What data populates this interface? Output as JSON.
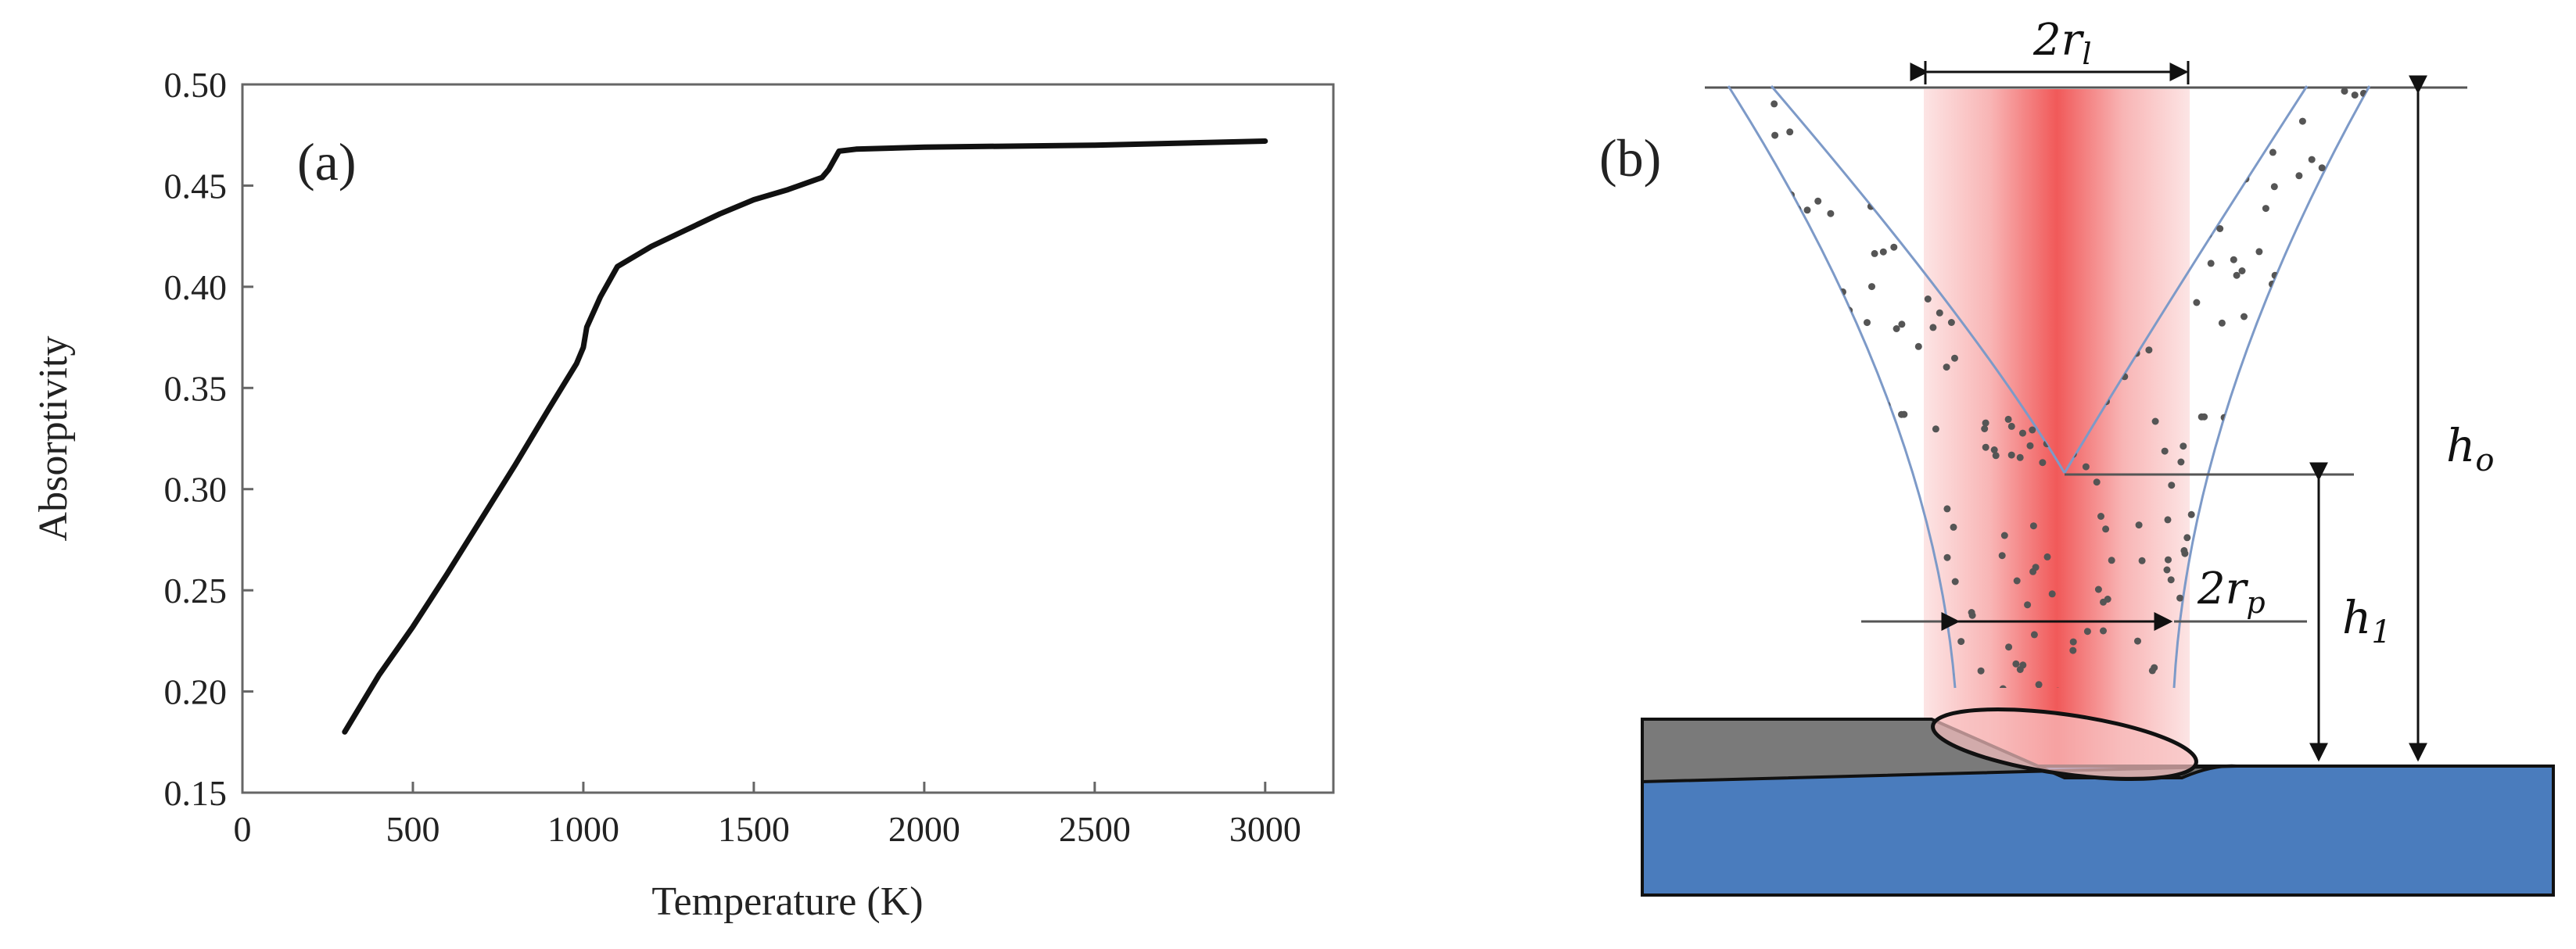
{
  "chart_data": {
    "type": "line",
    "panel_label": "(a)",
    "xlabel": "Temperature (K)",
    "ylabel": "Absorptivity",
    "xlim": [
      0,
      3200
    ],
    "ylim": [
      0.15,
      0.5
    ],
    "x_ticks": [
      "0",
      "500",
      "1000",
      "1500",
      "2000",
      "2500",
      "3000"
    ],
    "y_ticks": [
      "0.15",
      "0.20",
      "0.25",
      "0.30",
      "0.35",
      "0.40",
      "0.45",
      "0.50"
    ],
    "grid": false,
    "series": [
      {
        "x": [
          300,
          400,
          500,
          550,
          600,
          700,
          800,
          900,
          980,
          1000,
          1010,
          1050,
          1100,
          1200,
          1300,
          1400,
          1500,
          1600,
          1700,
          1720,
          1750,
          1800,
          2000,
          2500,
          3000
        ],
        "y": [
          0.18,
          0.208,
          0.232,
          0.245,
          0.258,
          0.285,
          0.312,
          0.34,
          0.362,
          0.37,
          0.38,
          0.395,
          0.41,
          0.42,
          0.428,
          0.436,
          0.443,
          0.448,
          0.454,
          0.458,
          0.467,
          0.468,
          0.469,
          0.47,
          0.472
        ]
      }
    ]
  },
  "diagram": {
    "panel_label": "(b)",
    "labels": {
      "laser_width": "2r",
      "laser_width_sub": "l",
      "powder_width": "2r",
      "powder_width_sub": "p",
      "total_height": "h",
      "total_height_sub": "o",
      "focus_height": "h",
      "focus_height_sub": "1"
    },
    "colors": {
      "laser_core": "#ee3c3c",
      "laser_edge": "#fce0e0",
      "substrate": "#4a7cbd",
      "clad_layer": "#7a7a7a",
      "powder_dot": "#555555",
      "stream_outline": "#7d9ac8"
    }
  }
}
